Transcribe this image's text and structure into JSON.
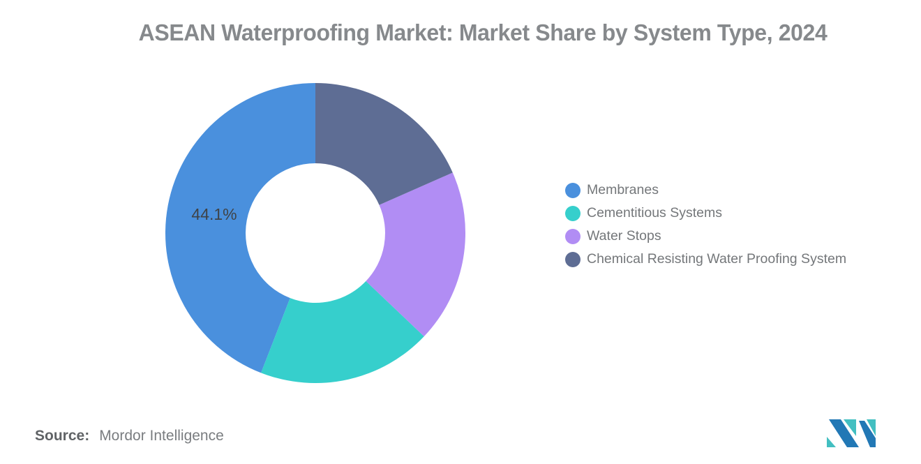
{
  "title": "ASEAN Waterproofing Market: Market Share by System Type, 2024",
  "source": {
    "prefix": "Source:",
    "text": "Mordor Intelligence"
  },
  "logo": {
    "name": "Mordor Intelligence logo",
    "blue": "#2278B5",
    "teal": "#43BFC1"
  },
  "chart_data": {
    "type": "pie",
    "subtype": "donut",
    "title": "ASEAN Waterproofing Market: Market Share by System Type, 2024",
    "unit": "%",
    "inner_radius_ratio": 0.465,
    "start_angle_deg": 0,
    "direction": "counterclockwise",
    "legend_position": "right",
    "series": [
      {
        "name": "Membranes",
        "value": 44.1,
        "color": "#4A90DD",
        "label": "44.1%"
      },
      {
        "name": "Cementitious Systems",
        "value": 18.8,
        "color": "#36CFCC",
        "label": null
      },
      {
        "name": "Water Stops",
        "value": 18.7,
        "color": "#B18DF4",
        "label": null
      },
      {
        "name": "Chemical Resisting Water Proofing System",
        "value": 18.4,
        "color": "#5E6D94",
        "label": null
      }
    ]
  }
}
